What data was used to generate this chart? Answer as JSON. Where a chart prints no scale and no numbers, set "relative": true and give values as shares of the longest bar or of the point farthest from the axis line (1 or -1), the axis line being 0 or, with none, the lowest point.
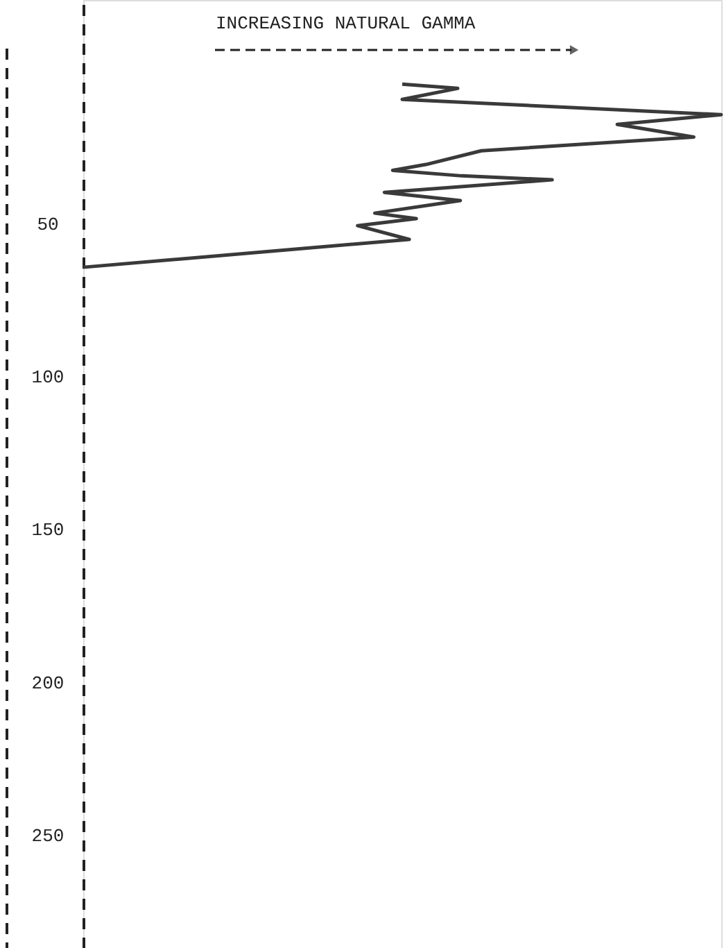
{
  "chart_data": {
    "type": "line",
    "orientation": "horizontal",
    "relative": true,
    "xlabel": "INCREASING NATURAL GAMMA",
    "x": [
      4.5,
      5.9,
      9.5,
      14.5,
      17.7,
      21.8,
      26.3,
      30.8,
      32.7,
      34.5,
      35.8,
      39.9,
      42.6,
      46.7,
      48.5,
      50.8,
      55.3,
      64.4
    ],
    "series": [
      {
        "color": "#3a3a3a",
        "values": [
          0.5,
          0.587,
          0.5,
          1,
          0.837,
          0.957,
          0.624,
          0.537,
          0.485,
          0.593,
          0.735,
          0.472,
          0.591,
          0.457,
          0.522,
          0.43,
          0.511,
          0
        ]
      }
    ],
    "ylim": [
      287,
      -23
    ],
    "yticks": [
      50,
      100,
      150,
      200,
      250
    ],
    "grid": false
  }
}
